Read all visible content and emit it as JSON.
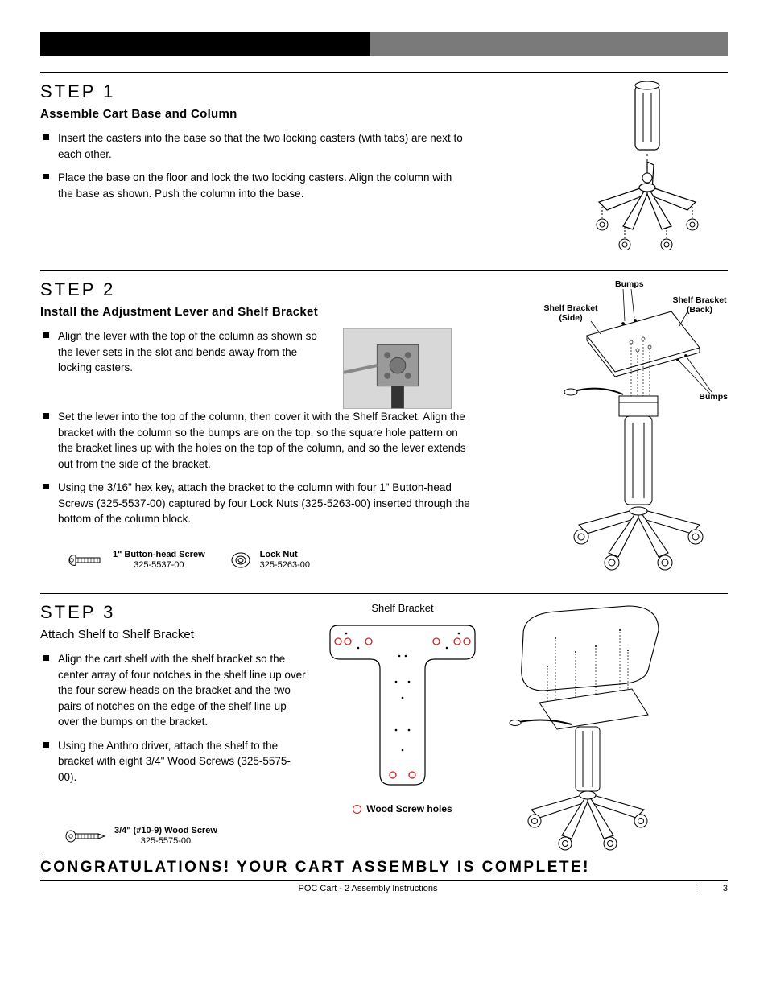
{
  "step1": {
    "title": "STEP 1",
    "subtitle": "Assemble Cart Base and Column",
    "bullets": [
      "Insert the casters into the base so that the two locking casters (with tabs) are next to each other.",
      "Place the base on the floor and lock the two locking casters. Align the column with the base as shown.  Push the column into the base."
    ]
  },
  "step2": {
    "title": "STEP 2",
    "subtitle": "Install the Adjustment Lever and Shelf Bracket",
    "bullets": [
      "Align the lever with the top of the column as shown so the lever  sets in the slot and bends away from the locking casters.",
      "Set the lever into the top of the column, then cover it with the Shelf Bracket.  Align the bracket with the column so the bumps are on the top, so the square hole pattern on the bracket lines up with the holes on the top of the column, and so the lever extends out from the side of the bracket.",
      "Using the 3/16\" hex key, attach the bracket to the column with four 1\" Button-head Screws (325-5537-00) captured by four Lock Nuts (325-5263-00) inserted through the bottom of the column block."
    ],
    "part1_name": "1\" Button-head Screw",
    "part1_pn": "325-5537-00",
    "part2_name": "Lock Nut",
    "part2_pn": "325-5263-00",
    "callouts": {
      "bumps_top": "Bumps",
      "bumps_side": "Bumps",
      "bracket_side": "Shelf Bracket\n(Side)",
      "bracket_back": "Shelf Bracket\n(Back)"
    }
  },
  "step3": {
    "title": "STEP 3",
    "subtitle": "Attach Shelf to Shelf Bracket",
    "bullets": [
      "Align the cart shelf with the shelf bracket so the center array of four notches in the shelf line up over the four screw-heads on the bracket and the two pairs of notches on the edge of the shelf line up over the bumps on the bracket.",
      "Using the Anthro driver, attach the shelf to the bracket with eight 3/4\" Wood Screws (325-5575-00)."
    ],
    "part_name": "3/4\" (#10-9) Wood Screw",
    "part_pn": "325-5575-00",
    "shelf_bracket_label": "Shelf Bracket",
    "wood_screw_legend": "Wood Screw holes"
  },
  "congrats": "CONGRATULATIONS!  YOUR CART ASSEMBLY IS COMPLETE!",
  "footer_center": "POC Cart - 2 Assembly Instructions",
  "footer_page": "3"
}
